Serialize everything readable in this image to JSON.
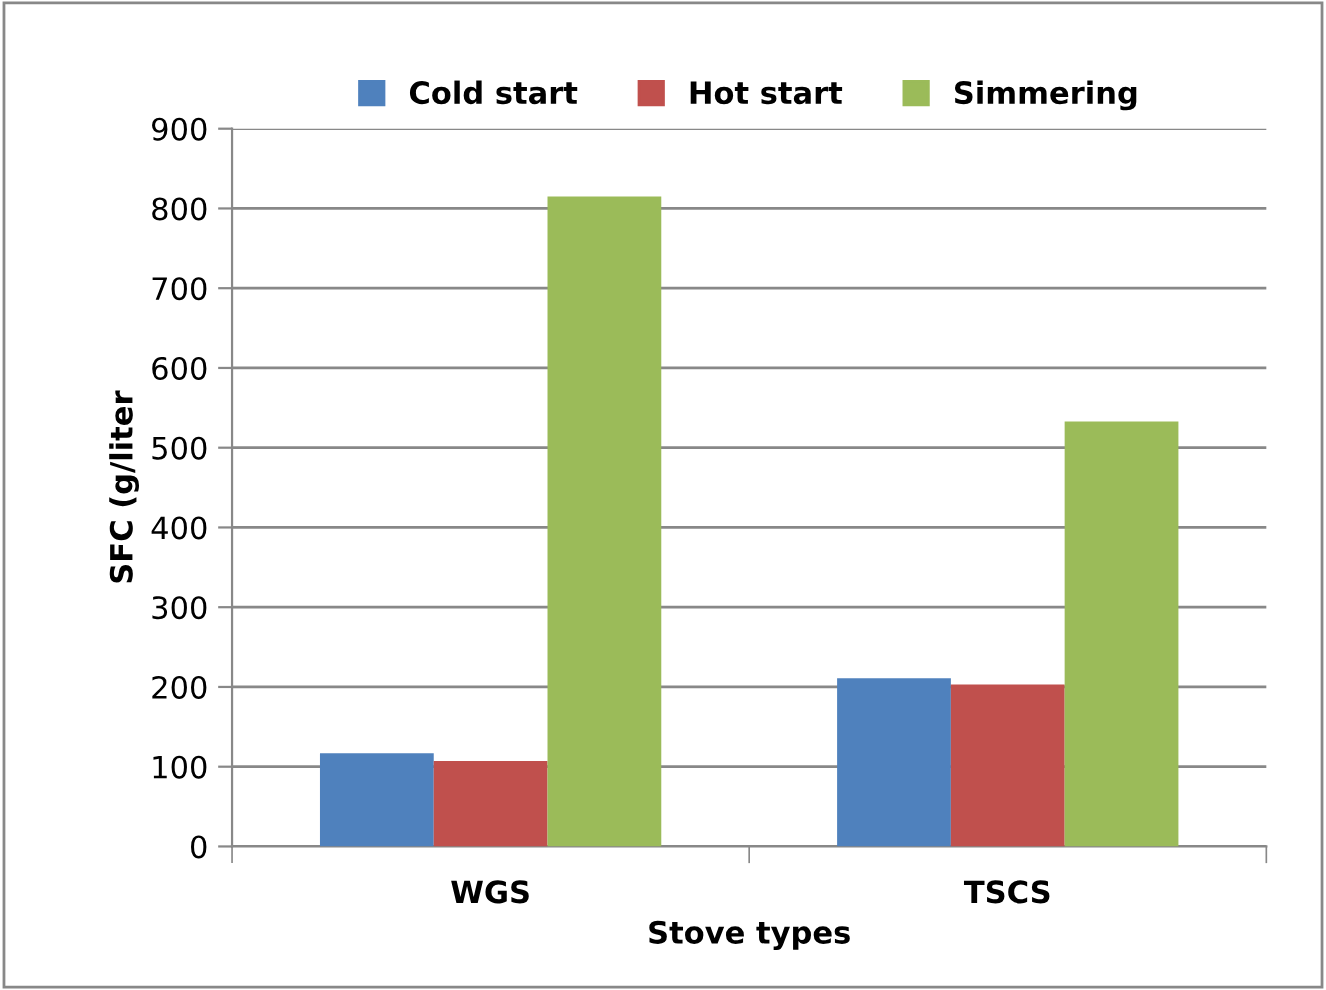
{
  "chart_data": {
    "type": "bar",
    "xlabel": "Stove types",
    "ylabel": "SFC (g/liter",
    "categories": [
      "WGS",
      "TSCS"
    ],
    "series": [
      {
        "name": "Cold start",
        "color": "#4f81bd",
        "values": [
          117,
          211
        ]
      },
      {
        "name": "Hot start",
        "color": "#c0504d",
        "values": [
          107,
          203
        ]
      },
      {
        "name": "Simmering",
        "color": "#9bbb59",
        "values": [
          815,
          533
        ]
      }
    ],
    "ylim": [
      0,
      900
    ],
    "yticks": [
      0,
      100,
      200,
      300,
      400,
      500,
      600,
      700,
      800,
      900
    ],
    "grid": "y",
    "legend": "top"
  }
}
